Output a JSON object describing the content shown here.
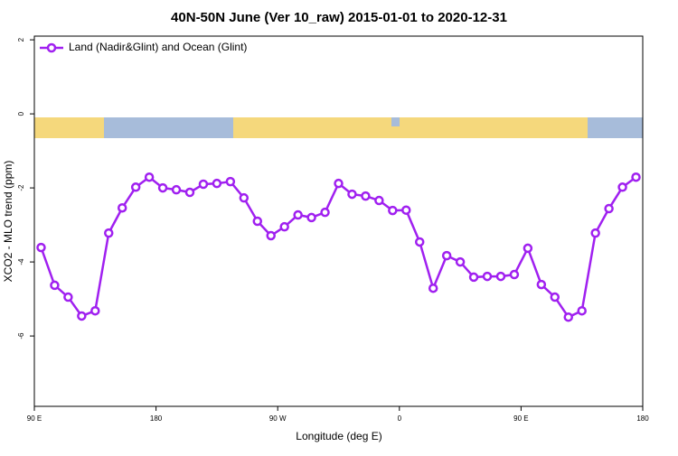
{
  "chart_data": {
    "type": "line",
    "title": "40N-50N June (Ver 10_raw)   2015-01-01 to 2020-12-31",
    "x_label": "Longitude (deg E)",
    "y_label": "XCO2 - MLO trend (ppm)",
    "x": [
      95,
      105,
      115,
      125,
      135,
      145,
      155,
      165,
      175,
      185,
      195,
      205,
      215,
      225,
      235,
      245,
      255,
      265,
      275,
      285,
      295,
      305,
      315,
      325,
      335,
      345,
      355,
      365,
      375,
      385,
      395,
      405,
      415,
      425,
      435,
      445,
      455,
      465,
      475,
      485,
      495,
      505,
      515,
      525,
      535
    ],
    "series": [
      {
        "name": "Land (Nadir&Glint) and Ocean (Glint)",
        "color": "#a020f0",
        "values": [
          -3.61,
          -4.63,
          -4.95,
          -5.46,
          -5.32,
          -3.22,
          -2.54,
          -1.98,
          -1.71,
          -2.0,
          -2.05,
          -2.12,
          -1.9,
          -1.88,
          -1.83,
          -2.27,
          -2.9,
          -3.29,
          -3.05,
          -2.73,
          -2.8,
          -2.66,
          -1.88,
          -2.17,
          -2.22,
          -2.34,
          -2.61,
          -2.6,
          -3.46,
          -4.71,
          -3.83,
          -4.0,
          -4.41,
          -4.39,
          -4.39,
          -4.34,
          -3.63,
          -4.61,
          -4.95,
          -5.49,
          -5.32,
          -3.22,
          -2.56,
          -1.98,
          -1.71
        ]
      }
    ],
    "xlim": [
      90,
      540
    ],
    "ylim": [
      -7.9,
      2.1
    ],
    "xticks": [
      {
        "value": 90,
        "label": "90 E"
      },
      180,
      {
        "value": 270,
        "label": "90 W"
      },
      {
        "value": 360,
        "label": "0"
      },
      {
        "value": 450,
        "label": "90 E"
      },
      {
        "value": 540,
        "label": "180"
      }
    ],
    "yticks": [
      2,
      0,
      -2,
      -4,
      -6
    ],
    "legend": "top-left"
  }
}
